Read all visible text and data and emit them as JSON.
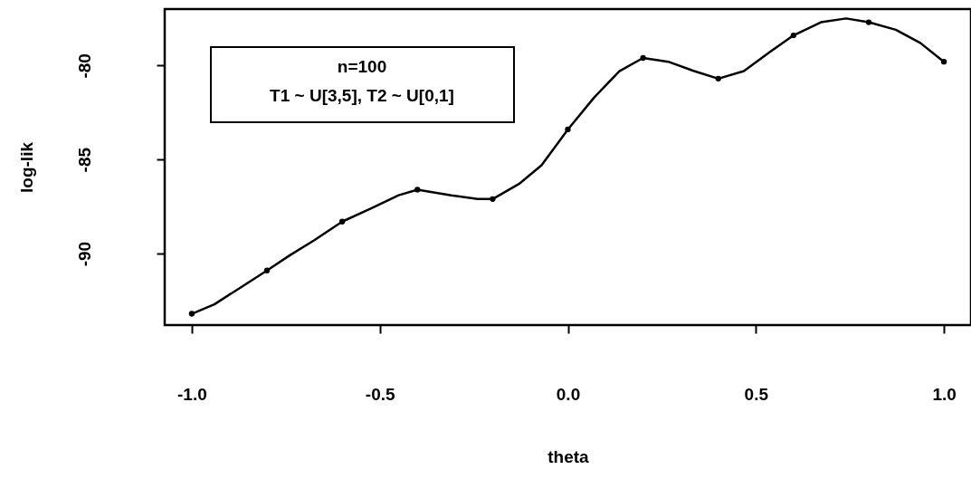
{
  "chart_data": {
    "type": "line",
    "xlabel": "theta",
    "ylabel": "log-lik",
    "annotations": [
      "n=100",
      "T1 ~ U[3,5], T2 ~ U[0,1]"
    ],
    "xlim": [
      -1.072,
      1.072
    ],
    "ylim": [
      -93.8,
      -77.0
    ],
    "xticks": [
      {
        "value": -1,
        "label": "-1.0"
      },
      {
        "value": -0.5,
        "label": "-0.5"
      },
      {
        "value": 0,
        "label": "0.0"
      },
      {
        "value": 0.5,
        "label": "0.5"
      },
      {
        "value": 1,
        "label": "1.0"
      }
    ],
    "yticks": [
      -90,
      -85,
      -80
    ],
    "grid": false,
    "series": [
      {
        "type": "line",
        "color": "#000000",
        "marker": "none",
        "line_style": "solid",
        "x": [
          -1.0,
          -0.94,
          -0.87,
          -0.8,
          -0.74,
          -0.675,
          -0.6,
          -0.523,
          -0.45,
          -0.4,
          -0.31,
          -0.24,
          -0.2,
          -0.13,
          -0.07,
          -0.018,
          0.0,
          0.07,
          0.137,
          0.2,
          0.267,
          0.336,
          0.4,
          0.468,
          0.536,
          0.6,
          0.673,
          0.74,
          0.8,
          0.872,
          0.937,
          1.0
        ],
        "values": [
          -93.2,
          -92.7,
          -91.8,
          -90.9,
          -90.1,
          -89.3,
          -88.3,
          -87.6,
          -86.9,
          -86.6,
          -86.9,
          -87.1,
          -87.1,
          -86.3,
          -85.3,
          -83.9,
          -83.4,
          -81.7,
          -80.3,
          -79.6,
          -79.8,
          -80.3,
          -80.7,
          -80.3,
          -79.3,
          -78.4,
          -77.7,
          -77.5,
          -77.7,
          -78.1,
          -78.8,
          -79.8
        ]
      },
      {
        "type": "scatter",
        "color": "#000000",
        "marker": "circle",
        "x": [
          -1.0,
          -0.8,
          -0.6,
          -0.4,
          -0.2,
          0.0,
          0.2,
          0.4,
          0.6,
          0.8,
          1.0
        ],
        "values": [
          -93.2,
          -90.9,
          -88.3,
          -86.6,
          -87.1,
          -83.4,
          -79.6,
          -80.7,
          -78.4,
          -77.7,
          -79.8
        ]
      }
    ]
  }
}
